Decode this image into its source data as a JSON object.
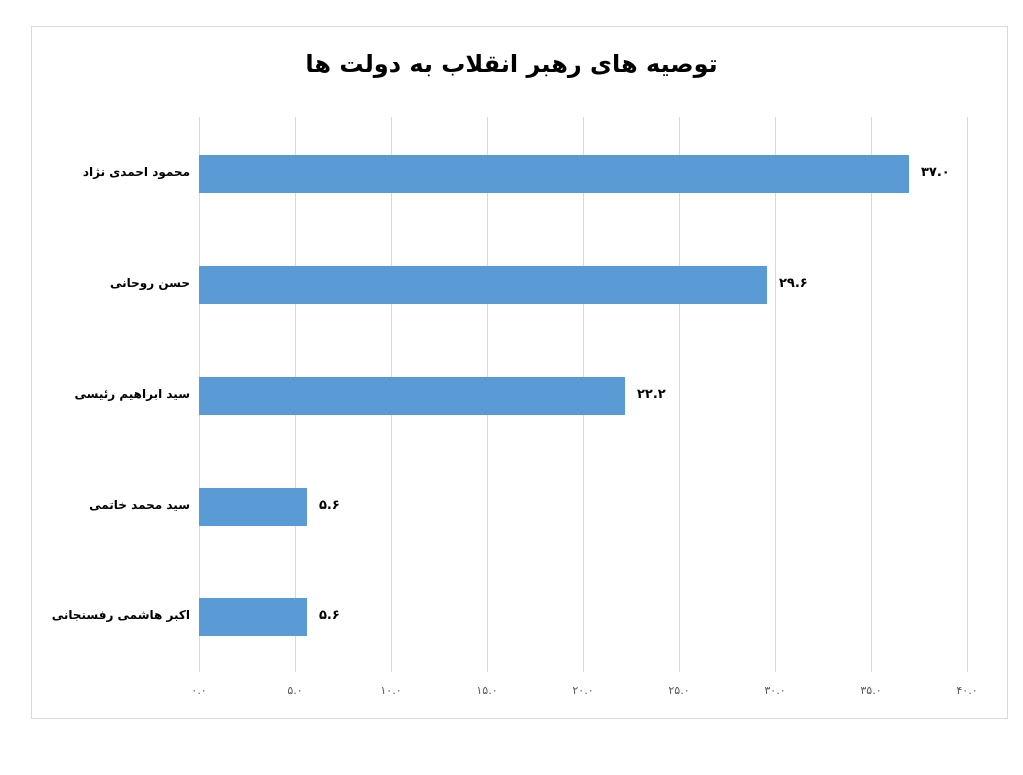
{
  "chart_data": {
    "type": "bar",
    "orientation": "horizontal",
    "title": "توصیه های رهبر انقلاب به دولت ها",
    "categories": [
      "محمود احمدی نژاد",
      "حسن روحانی",
      "سید ابراهیم رئیسی",
      "سید محمد خاتمی",
      "اکبر هاشمی رفسنجانی"
    ],
    "values": [
      37.0,
      29.6,
      22.2,
      5.6,
      5.6
    ],
    "value_labels": [
      "۳۷.۰",
      "۲۹.۶",
      "۲۲.۲",
      "۵.۶",
      "۵.۶"
    ],
    "xlabel": "",
    "ylabel": "",
    "xlim": [
      0,
      40
    ],
    "x_ticks": [
      0,
      5,
      10,
      15,
      20,
      25,
      30,
      35,
      40
    ],
    "x_tick_labels": [
      "۰.۰",
      "۵.۰",
      "۱۰.۰",
      "۱۵.۰",
      "۲۰.۰",
      "۲۵.۰",
      "۳۰.۰",
      "۳۵.۰",
      "۴۰.۰"
    ],
    "grid": true,
    "legend": null,
    "bar_color": "#5b9bd5"
  },
  "colors": {
    "bar": "#5b9bd5",
    "grid": "#d9d9d9",
    "frame": "#d9d9d9"
  }
}
